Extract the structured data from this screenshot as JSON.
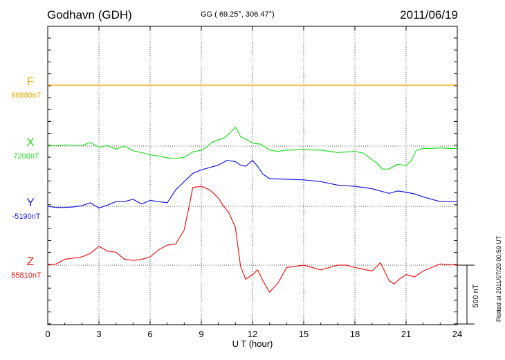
{
  "header": {
    "station": "Godhavn (GDH)",
    "coords": "GG ( 69.25°, 306.47°)",
    "date": "2011/06/19"
  },
  "plot_stamp": "Plotted at 2011/07/20 00:59 UT",
  "chart_data": {
    "type": "line",
    "title": "Godhavn (GDH)",
    "xlabel": "U T (hour)",
    "ylabel": "",
    "xlim": [
      0,
      24
    ],
    "xticks": [
      0,
      3,
      6,
      9,
      12,
      15,
      18,
      21,
      24
    ],
    "grid": true,
    "units": "nT",
    "scale_bar": {
      "label": "500 nT",
      "value_nT": 500
    },
    "series": [
      {
        "name": "F",
        "baseline_label": "88880nT",
        "color": "#f0a800",
        "x": [
          0,
          24
        ],
        "y": [
          88880,
          88880
        ]
      },
      {
        "name": "X",
        "baseline_label": "7200nT",
        "color": "#22dd22",
        "x": [
          0,
          1,
          2,
          2.5,
          3,
          3.5,
          4,
          4.5,
          5,
          5.5,
          6,
          6.5,
          7,
          7.5,
          8,
          8.5,
          9,
          9.3,
          9.6,
          10,
          10.3,
          10.6,
          11,
          11.3,
          11.6,
          12,
          12.5,
          13,
          13.5,
          14,
          15,
          16,
          17,
          17.5,
          18,
          18.5,
          19,
          19.3,
          19.6,
          20,
          20.5,
          21,
          21.3,
          21.6,
          22,
          22.5,
          23,
          23.5,
          24
        ],
        "y": [
          7185,
          7195,
          7190,
          7215,
          7175,
          7190,
          7160,
          7185,
          7145,
          7130,
          7110,
          7100,
          7085,
          7080,
          7090,
          7135,
          7150,
          7175,
          7215,
          7240,
          7250,
          7285,
          7345,
          7265,
          7245,
          7210,
          7200,
          7150,
          7140,
          7150,
          7155,
          7150,
          7130,
          7135,
          7140,
          7125,
          7070,
          7040,
          6990,
          6990,
          7030,
          7020,
          7060,
          7150,
          7165,
          7165,
          7170,
          7165,
          7165
        ]
      },
      {
        "name": "Y",
        "baseline_label": "-5190nT",
        "color": "#1818dd",
        "x": [
          0,
          0.5,
          1,
          1.5,
          2,
          2.5,
          3,
          3.5,
          4,
          4.5,
          5,
          5.5,
          6,
          6.5,
          7,
          7.5,
          8,
          8.5,
          9,
          9.5,
          10,
          10.5,
          11,
          11.3,
          11.6,
          12,
          12.3,
          12.6,
          13,
          14,
          15,
          16,
          17,
          18,
          19,
          19.5,
          20,
          20.5,
          21,
          21.5,
          22,
          23,
          24
        ],
        "y": [
          -5190,
          -5200,
          -5200,
          -5195,
          -5185,
          -5160,
          -5205,
          -5180,
          -5150,
          -5150,
          -5130,
          -5170,
          -5140,
          -5150,
          -5160,
          -5050,
          -4980,
          -4910,
          -4880,
          -4860,
          -4840,
          -4800,
          -4810,
          -4840,
          -4850,
          -4800,
          -4850,
          -4915,
          -4955,
          -4960,
          -4965,
          -4980,
          -5010,
          -5020,
          -5040,
          -5060,
          -5080,
          -5060,
          -5070,
          -5085,
          -5110,
          -5150,
          -5150
        ]
      },
      {
        "name": "Z",
        "baseline_label": "55810nT",
        "color": "#e81818",
        "x": [
          0,
          0.5,
          1,
          1.5,
          2,
          2.5,
          3,
          3.5,
          4,
          4.5,
          5,
          5.5,
          6,
          6.5,
          7,
          7.5,
          8,
          8.3,
          8.5,
          9,
          9.5,
          10,
          10.3,
          10.6,
          11,
          11.3,
          11.6,
          12,
          12.3,
          12.6,
          13,
          13.5,
          14,
          15,
          16,
          17,
          17.5,
          18,
          19,
          19.5,
          20,
          20.3,
          20.6,
          21,
          21.5,
          22,
          23,
          24
        ],
        "y": [
          55810,
          55820,
          55860,
          55870,
          55880,
          55910,
          55970,
          55930,
          55920,
          55860,
          55850,
          55860,
          55880,
          55940,
          55980,
          55990,
          56110,
          56320,
          56470,
          56480,
          56450,
          56380,
          56310,
          56260,
          56130,
          55800,
          55690,
          55730,
          55770,
          55680,
          55580,
          55660,
          55790,
          55810,
          55770,
          55810,
          55810,
          55790,
          55760,
          55830,
          55680,
          55650,
          55690,
          55730,
          55710,
          55760,
          55820,
          55810
        ]
      }
    ]
  }
}
